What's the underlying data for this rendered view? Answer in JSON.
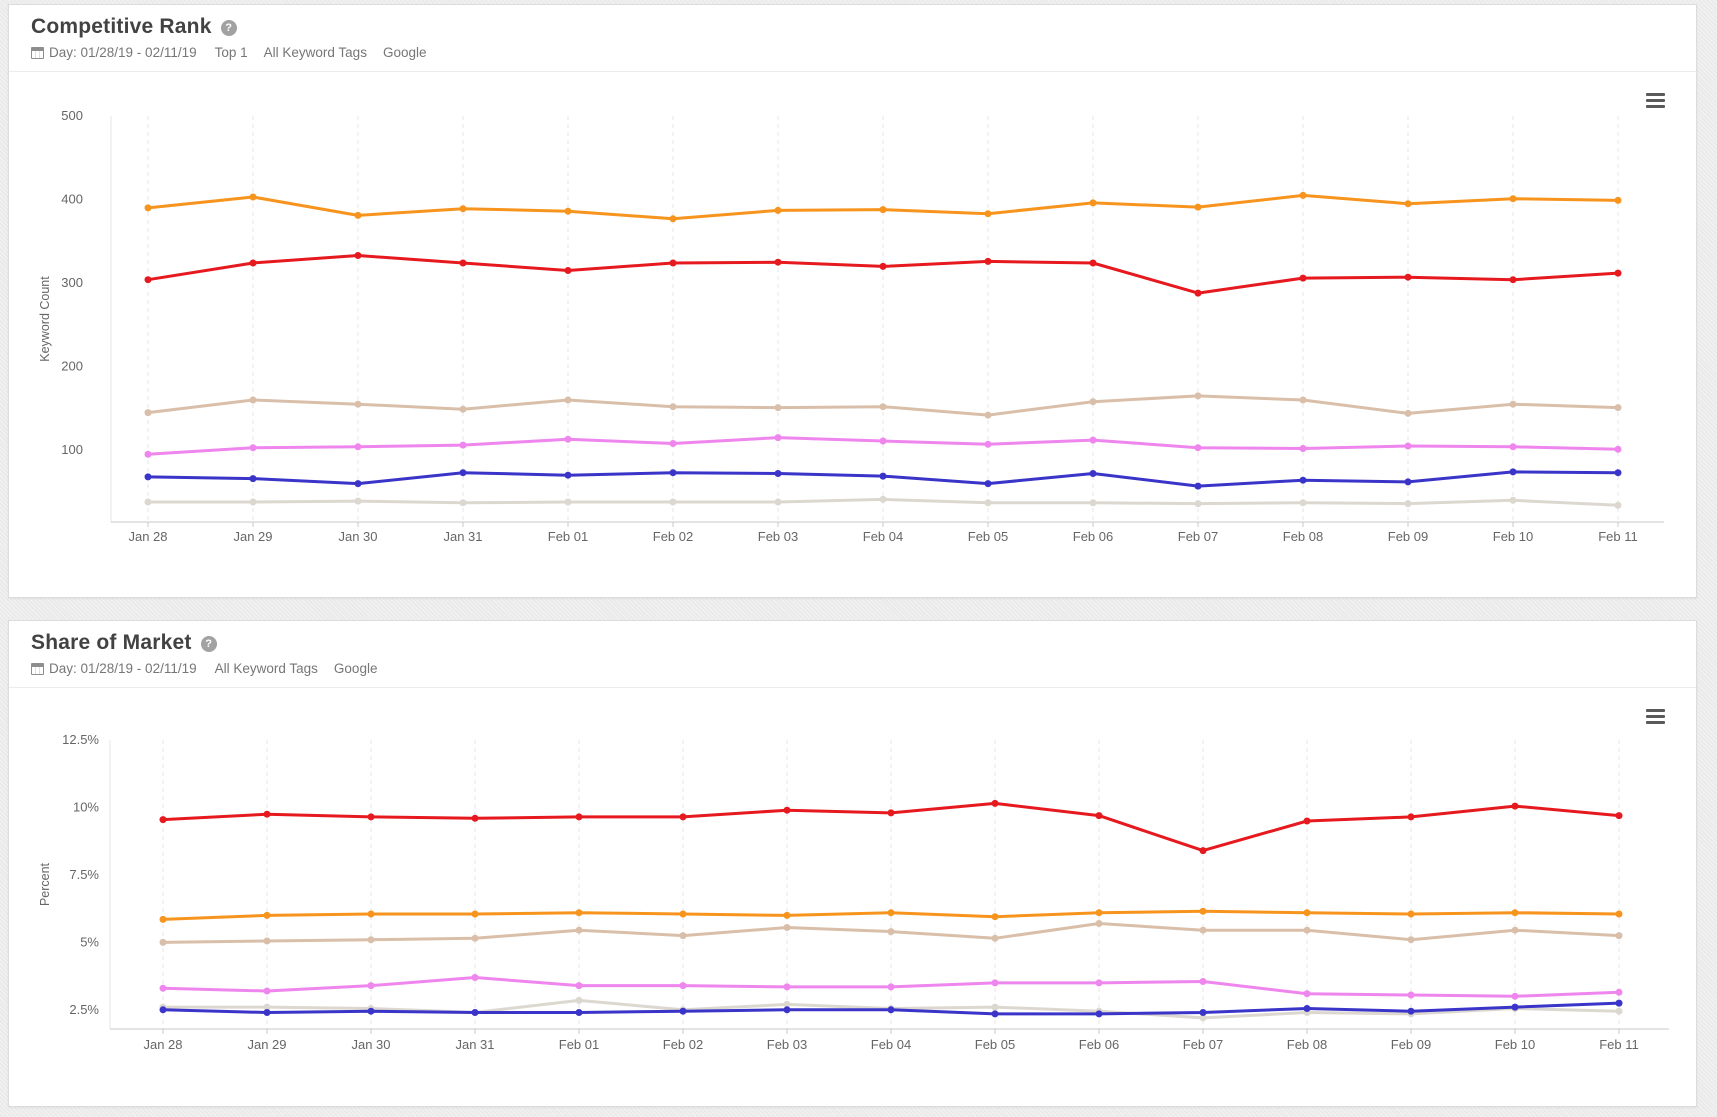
{
  "panels": [
    {
      "title": "Competitive Rank",
      "help_icon": "question-circle",
      "menu_icon": "hamburger-menu",
      "filters": {
        "calendar_icon": "calendar",
        "date_range": "Day: 01/28/19 - 02/11/19",
        "items": [
          "Top 1",
          "All Keyword Tags",
          "Google"
        ]
      }
    },
    {
      "title": "Share of Market",
      "help_icon": "question-circle",
      "menu_icon": "hamburger-menu",
      "filters": {
        "calendar_icon": "calendar",
        "date_range": "Day: 01/28/19 - 02/11/19",
        "items": [
          "All Keyword Tags",
          "Google"
        ]
      }
    }
  ],
  "chart_data": [
    {
      "type": "line",
      "title": "Competitive Rank",
      "xlabel": "",
      "ylabel": "Keyword Count",
      "legend": "none",
      "grid": "vertical-dashed",
      "ylim": [
        14,
        500
      ],
      "yticks": [
        100,
        200,
        300,
        400,
        500
      ],
      "ytick_labels": [
        "100",
        "200",
        "300",
        "400",
        "500"
      ],
      "categories": [
        "Jan 28",
        "Jan 29",
        "Jan 30",
        "Jan 31",
        "Feb 01",
        "Feb 02",
        "Feb 03",
        "Feb 04",
        "Feb 05",
        "Feb 06",
        "Feb 07",
        "Feb 08",
        "Feb 09",
        "Feb 10",
        "Feb 11"
      ],
      "series": [
        {
          "name": "series-orange",
          "color": "#f7941e",
          "values": [
            390,
            403,
            381,
            389,
            386,
            377,
            387,
            388,
            383,
            396,
            391,
            405,
            395,
            401,
            399
          ]
        },
        {
          "name": "series-red",
          "color": "#e6191f",
          "values": [
            304,
            324,
            333,
            324,
            315,
            324,
            325,
            320,
            326,
            324,
            288,
            306,
            307,
            304,
            312
          ]
        },
        {
          "name": "series-tan",
          "color": "#d9bfa9",
          "values": [
            145,
            160,
            155,
            149,
            160,
            152,
            151,
            152,
            142,
            158,
            165,
            160,
            144,
            155,
            151
          ]
        },
        {
          "name": "series-violet",
          "color": "#ee86ee",
          "values": [
            95,
            103,
            104,
            106,
            113,
            108,
            115,
            111,
            107,
            112,
            103,
            102,
            105,
            104,
            101
          ]
        },
        {
          "name": "series-gray",
          "color": "#dcd8cf",
          "values": [
            38,
            38,
            39,
            37,
            38,
            38,
            38,
            41,
            37,
            37,
            36,
            37,
            36,
            40,
            34
          ]
        },
        {
          "name": "series-blue",
          "color": "#3a35c8",
          "values": [
            68,
            66,
            60,
            73,
            70,
            73,
            72,
            69,
            60,
            72,
            57,
            64,
            62,
            74,
            73
          ]
        }
      ]
    },
    {
      "type": "line",
      "title": "Share of Market",
      "xlabel": "",
      "ylabel": "Percent",
      "legend": "none",
      "grid": "vertical-dashed",
      "ylim": [
        1.79,
        12.5
      ],
      "yticks": [
        2.5,
        5,
        7.5,
        10,
        12.5
      ],
      "ytick_labels": [
        "2.5%",
        "5%",
        "7.5%",
        "10%",
        "12.5%"
      ],
      "categories": [
        "Jan 28",
        "Jan 29",
        "Jan 30",
        "Jan 31",
        "Feb 01",
        "Feb 02",
        "Feb 03",
        "Feb 04",
        "Feb 05",
        "Feb 06",
        "Feb 07",
        "Feb 08",
        "Feb 09",
        "Feb 10",
        "Feb 11"
      ],
      "series": [
        {
          "name": "series-red",
          "color": "#e6191f",
          "values": [
            9.55,
            9.75,
            9.65,
            9.6,
            9.65,
            9.65,
            9.9,
            9.8,
            10.15,
            9.7,
            8.4,
            9.5,
            9.65,
            10.05,
            9.7
          ]
        },
        {
          "name": "series-orange",
          "color": "#f7941e",
          "values": [
            5.85,
            6.0,
            6.05,
            6.05,
            6.1,
            6.05,
            6.0,
            6.1,
            5.95,
            6.1,
            6.15,
            6.1,
            6.05,
            6.1,
            6.05
          ]
        },
        {
          "name": "series-tan",
          "color": "#d9bfa9",
          "values": [
            5.0,
            5.05,
            5.1,
            5.15,
            5.45,
            5.25,
            5.55,
            5.4,
            5.15,
            5.7,
            5.45,
            5.45,
            5.1,
            5.45,
            5.25
          ]
        },
        {
          "name": "series-violet",
          "color": "#ee86ee",
          "values": [
            3.3,
            3.2,
            3.4,
            3.7,
            3.4,
            3.4,
            3.35,
            3.35,
            3.5,
            3.5,
            3.55,
            3.1,
            3.05,
            3.0,
            3.15
          ]
        },
        {
          "name": "series-gray",
          "color": "#dcd8cf",
          "values": [
            2.6,
            2.6,
            2.55,
            2.4,
            2.85,
            2.5,
            2.7,
            2.55,
            2.6,
            2.45,
            2.2,
            2.4,
            2.35,
            2.55,
            2.45
          ]
        },
        {
          "name": "series-blue",
          "color": "#3a35c8",
          "values": [
            2.5,
            2.4,
            2.45,
            2.4,
            2.4,
            2.45,
            2.5,
            2.5,
            2.35,
            2.35,
            2.4,
            2.55,
            2.45,
            2.6,
            2.75
          ]
        }
      ]
    }
  ]
}
